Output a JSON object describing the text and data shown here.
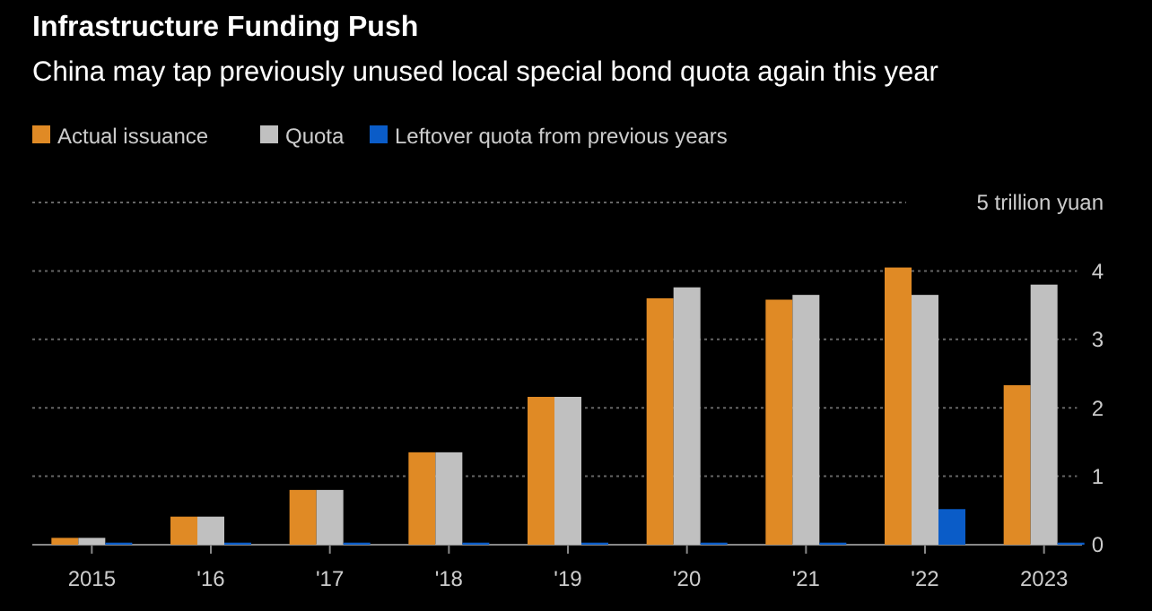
{
  "chart_data": {
    "type": "bar",
    "title": "Infrastructure Funding Push",
    "subtitle": "China may tap previously unused local special bond quota again this year",
    "categories": [
      "2015",
      "'16",
      "'17",
      "'18",
      "'19",
      "'20",
      "'21",
      "'22",
      "2023"
    ],
    "series": [
      {
        "name": "Actual issuance",
        "color": "#e08a25",
        "values": [
          0.1,
          0.41,
          0.8,
          1.35,
          2.16,
          3.6,
          3.58,
          4.05,
          2.33
        ]
      },
      {
        "name": "Quota",
        "color": "#c0c0c0",
        "values": [
          0.1,
          0.41,
          0.8,
          1.35,
          2.16,
          3.76,
          3.65,
          3.65,
          3.8
        ]
      },
      {
        "name": "Leftover quota from previous years",
        "color": "#0a5cc8",
        "values": [
          0.03,
          0.03,
          0.03,
          0.03,
          0.03,
          0.03,
          0.03,
          0.52,
          0.03
        ]
      }
    ],
    "ylim": [
      0,
      5
    ],
    "yticks": [
      0,
      1,
      2,
      3,
      4,
      {
        "value": 5,
        "label": "5 trillion yuan"
      }
    ],
    "grid": "y",
    "legend": "top left"
  }
}
